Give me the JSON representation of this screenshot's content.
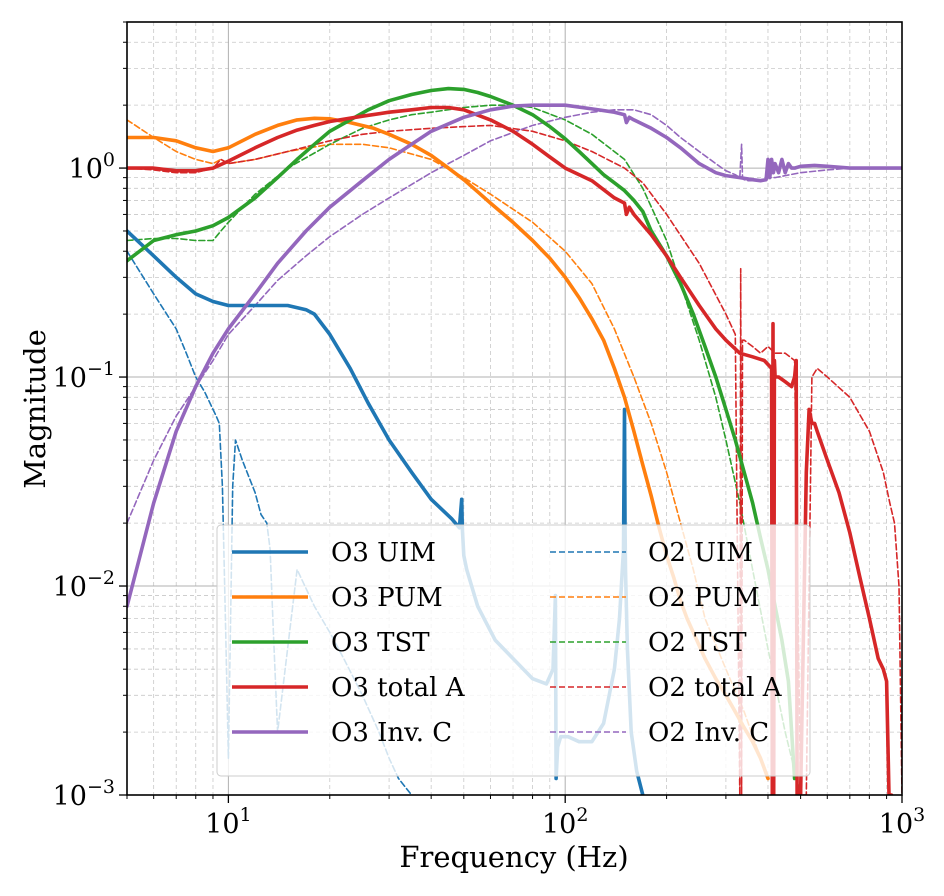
{
  "chart_data": {
    "type": "line",
    "title": "",
    "xlabel": "Frequency (Hz)",
    "ylabel": "Magnitude",
    "xscale": "log",
    "yscale": "log",
    "xlim": [
      5,
      1000
    ],
    "ylim": [
      0.001,
      5
    ],
    "grid": true,
    "legend": "lower-center, two columns",
    "x_ticks": [
      {
        "base": "10",
        "exp": "1"
      },
      {
        "base": "10",
        "exp": "2"
      },
      {
        "base": "10",
        "exp": "3"
      }
    ],
    "y_ticks": [
      {
        "base": "10",
        "exp": "−3"
      },
      {
        "base": "10",
        "exp": "−2"
      },
      {
        "base": "10",
        "exp": "−1"
      },
      {
        "base": "10",
        "exp": "0"
      }
    ],
    "series": [
      {
        "name": "O3 UIM",
        "color": "#1f77b4",
        "style": "solid",
        "x": [
          5,
          6,
          7,
          8,
          9,
          10,
          11,
          12,
          13,
          15,
          17,
          18,
          20,
          23,
          26,
          30,
          35,
          40,
          46,
          48.5,
          49.3,
          49.5,
          50,
          51,
          55,
          62,
          70,
          80,
          88,
          92,
          93.5,
          94,
          95,
          97,
          102,
          110,
          120,
          130,
          140,
          145,
          149,
          150,
          150.5,
          151,
          153,
          157,
          163,
          170
        ],
        "y": [
          0.5,
          0.38,
          0.3,
          0.25,
          0.23,
          0.22,
          0.22,
          0.22,
          0.22,
          0.22,
          0.21,
          0.2,
          0.16,
          0.11,
          0.075,
          0.05,
          0.035,
          0.026,
          0.021,
          0.019,
          0.026,
          0.019,
          0.014,
          0.012,
          0.008,
          0.0055,
          0.0045,
          0.0036,
          0.0034,
          0.004,
          0.009,
          0.0012,
          0.0017,
          0.0019,
          0.0019,
          0.0018,
          0.0018,
          0.0022,
          0.004,
          0.007,
          0.015,
          0.07,
          0.02,
          0.012,
          0.005,
          0.002,
          0.0013,
          0.001
        ]
      },
      {
        "name": "O3 PUM",
        "color": "#ff7f0e",
        "style": "solid",
        "x": [
          5,
          6,
          7,
          8,
          9,
          10,
          12,
          14,
          16,
          18,
          20,
          23,
          27,
          30,
          35,
          40,
          45,
          50,
          55,
          60,
          70,
          80,
          90,
          100,
          110,
          120,
          130,
          140,
          150,
          160,
          170,
          180,
          190,
          200,
          210,
          220,
          230,
          240,
          260,
          280,
          300,
          320,
          340,
          360,
          380,
          400
        ],
        "y": [
          1.4,
          1.4,
          1.35,
          1.25,
          1.2,
          1.25,
          1.45,
          1.6,
          1.7,
          1.73,
          1.72,
          1.65,
          1.55,
          1.45,
          1.3,
          1.15,
          1.0,
          0.88,
          0.77,
          0.68,
          0.55,
          0.45,
          0.37,
          0.3,
          0.24,
          0.19,
          0.15,
          0.11,
          0.08,
          0.055,
          0.038,
          0.027,
          0.019,
          0.014,
          0.011,
          0.0085,
          0.007,
          0.006,
          0.0045,
          0.0036,
          0.003,
          0.0025,
          0.0021,
          0.0018,
          0.0015,
          0.0012
        ]
      },
      {
        "name": "O3 TST",
        "color": "#2ca02c",
        "style": "solid",
        "x": [
          5,
          6,
          7,
          8,
          9,
          10,
          12,
          14,
          16,
          18,
          20,
          23,
          26,
          30,
          35,
          40,
          45,
          50,
          55,
          60,
          70,
          80,
          90,
          100,
          110,
          120,
          130,
          140,
          150,
          160,
          170,
          180,
          200,
          220,
          240,
          260,
          280,
          300,
          320,
          340,
          360,
          380,
          400,
          420,
          440,
          460,
          480
        ],
        "y": [
          0.36,
          0.45,
          0.48,
          0.5,
          0.53,
          0.58,
          0.72,
          0.9,
          1.1,
          1.3,
          1.5,
          1.7,
          1.9,
          2.1,
          2.25,
          2.35,
          2.4,
          2.38,
          2.3,
          2.2,
          2.0,
          1.8,
          1.58,
          1.38,
          1.2,
          1.05,
          0.93,
          0.85,
          0.78,
          0.7,
          0.62,
          0.5,
          0.38,
          0.28,
          0.2,
          0.14,
          0.1,
          0.07,
          0.05,
          0.035,
          0.025,
          0.017,
          0.012,
          0.008,
          0.0055,
          0.0035,
          0.0012
        ]
      },
      {
        "name": "O3 total A",
        "color": "#d62728",
        "style": "solid",
        "x": [
          5,
          6,
          7,
          8,
          9,
          10,
          12,
          14,
          16,
          18,
          20,
          25,
          30,
          35,
          40,
          45,
          50,
          60,
          70,
          80,
          90,
          100,
          120,
          140,
          150,
          152,
          155,
          160,
          180,
          200,
          220,
          250,
          280,
          300,
          330,
          360,
          390,
          410,
          412,
          414,
          416,
          418,
          420,
          430,
          450,
          470,
          480,
          485,
          488,
          490,
          500,
          520,
          530,
          540,
          550,
          560,
          600,
          650,
          700,
          750,
          800,
          850,
          880,
          900,
          915,
          930
        ],
        "y": [
          1.0,
          1.0,
          0.97,
          0.97,
          1.0,
          1.08,
          1.25,
          1.4,
          1.52,
          1.6,
          1.67,
          1.77,
          1.85,
          1.9,
          1.95,
          1.95,
          1.9,
          1.7,
          1.5,
          1.3,
          1.13,
          1.0,
          0.87,
          0.72,
          0.68,
          0.6,
          0.65,
          0.6,
          0.48,
          0.38,
          0.3,
          0.22,
          0.17,
          0.15,
          0.13,
          0.125,
          0.12,
          0.11,
          0.001,
          0.18,
          0.001,
          0.12,
          0.1,
          0.1,
          0.095,
          0.09,
          0.1,
          0.12,
          0.001,
          0.001,
          0.001,
          0.035,
          0.07,
          0.06,
          0.06,
          0.055,
          0.04,
          0.028,
          0.018,
          0.011,
          0.007,
          0.0045,
          0.004,
          0.0035,
          0.001,
          0.001
        ]
      },
      {
        "name": "O3 Inv. C",
        "color": "#9467bd",
        "style": "solid",
        "x": [
          5,
          6,
          7,
          8,
          9,
          10,
          12,
          14,
          17,
          20,
          25,
          30,
          35,
          40,
          50,
          60,
          70,
          80,
          90,
          100,
          120,
          140,
          150,
          152,
          155,
          160,
          180,
          200,
          220,
          250,
          280,
          300,
          330,
          360,
          380,
          395,
          400,
          405,
          410,
          415,
          420,
          430,
          440,
          450,
          460,
          470,
          480,
          500,
          550,
          600,
          700,
          800,
          900,
          1000
        ],
        "y": [
          0.008,
          0.025,
          0.055,
          0.09,
          0.13,
          0.17,
          0.25,
          0.35,
          0.5,
          0.65,
          0.87,
          1.1,
          1.3,
          1.5,
          1.75,
          1.9,
          1.98,
          2.0,
          2.0,
          2.0,
          1.92,
          1.85,
          1.8,
          1.65,
          1.75,
          1.7,
          1.55,
          1.4,
          1.25,
          1.05,
          0.95,
          0.92,
          0.9,
          0.88,
          0.87,
          0.88,
          1.1,
          0.9,
          1.1,
          0.95,
          1.05,
          0.95,
          1.1,
          0.95,
          1.05,
          1.0,
          1.0,
          1.02,
          1.03,
          1.02,
          1.0,
          1.0,
          1.0,
          1.0
        ]
      },
      {
        "name": "O2 UIM",
        "color": "#1f77b4",
        "style": "dashed",
        "x": [
          5,
          6,
          7,
          7.5,
          8,
          8.5,
          9,
          9.2,
          9.4,
          9.6,
          9.8,
          10,
          10.3,
          10.5,
          11,
          12,
          12.5,
          13,
          13.3,
          13.6,
          14,
          16,
          18,
          20,
          22,
          25,
          28,
          30,
          32,
          35
        ],
        "y": [
          0.4,
          0.25,
          0.17,
          0.13,
          0.1,
          0.085,
          0.07,
          0.065,
          0.06,
          0.03,
          0.007,
          0.0015,
          0.03,
          0.05,
          0.04,
          0.028,
          0.022,
          0.02,
          0.015,
          0.006,
          0.002,
          0.012,
          0.008,
          0.006,
          0.0045,
          0.003,
          0.002,
          0.0015,
          0.0012,
          0.001
        ]
      },
      {
        "name": "O2 PUM",
        "color": "#ff7f0e",
        "style": "dashed",
        "x": [
          5,
          6,
          7,
          8,
          9,
          9.5,
          10,
          12,
          15,
          20,
          25,
          30,
          40,
          50,
          60,
          80,
          100,
          120,
          140,
          160,
          180,
          200,
          220,
          240,
          260,
          300,
          340,
          380,
          400
        ],
        "y": [
          1.7,
          1.4,
          1.2,
          1.1,
          1.05,
          1.1,
          1.05,
          1.1,
          1.2,
          1.3,
          1.3,
          1.25,
          1.1,
          0.9,
          0.75,
          0.55,
          0.4,
          0.28,
          0.17,
          0.1,
          0.06,
          0.035,
          0.02,
          0.012,
          0.007,
          0.004,
          0.0025,
          0.0015,
          0.0012
        ]
      },
      {
        "name": "O2 TST",
        "color": "#2ca02c",
        "style": "dashed",
        "x": [
          5,
          6,
          7,
          8,
          9,
          9.5,
          10,
          12,
          15,
          20,
          25,
          30,
          35,
          40,
          50,
          60,
          70,
          80,
          100,
          120,
          150,
          170,
          200,
          220,
          250,
          280,
          300,
          330,
          360,
          400,
          450,
          500
        ],
        "y": [
          0.45,
          0.46,
          0.46,
          0.45,
          0.45,
          0.5,
          0.55,
          0.75,
          1.0,
          1.3,
          1.55,
          1.7,
          1.8,
          1.85,
          1.95,
          2.0,
          2.0,
          1.95,
          1.7,
          1.45,
          1.1,
          0.8,
          0.45,
          0.28,
          0.15,
          0.08,
          0.05,
          0.025,
          0.012,
          0.005,
          0.002,
          0.001
        ]
      },
      {
        "name": "O2 total A",
        "color": "#d62728",
        "style": "dashed",
        "x": [
          5,
          6,
          7,
          8,
          9,
          9.5,
          10,
          12,
          15,
          20,
          25,
          30,
          40,
          50,
          60,
          80,
          100,
          120,
          150,
          170,
          200,
          250,
          300,
          320,
          330,
          332,
          334,
          336,
          340,
          360,
          380,
          400,
          420,
          450,
          480,
          500,
          520,
          540,
          560,
          600,
          700,
          800,
          880,
          920,
          950,
          980,
          1000
        ],
        "y": [
          1.0,
          0.98,
          0.95,
          0.95,
          1.0,
          1.1,
          1.05,
          1.1,
          1.2,
          1.35,
          1.45,
          1.5,
          1.55,
          1.58,
          1.6,
          1.5,
          1.35,
          1.2,
          1.0,
          0.85,
          0.6,
          0.35,
          0.2,
          0.16,
          0.001,
          0.33,
          0.001,
          0.15,
          0.15,
          0.14,
          0.13,
          0.14,
          0.13,
          0.13,
          0.12,
          0.001,
          0.001,
          0.1,
          0.11,
          0.1,
          0.08,
          0.055,
          0.035,
          0.025,
          0.02,
          0.01,
          0.001
        ]
      },
      {
        "name": "O2 Inv. C",
        "color": "#9467bd",
        "style": "dashed",
        "x": [
          5,
          6,
          7,
          8,
          9,
          10,
          12,
          14,
          17,
          20,
          25,
          30,
          40,
          50,
          60,
          80,
          100,
          120,
          140,
          160,
          180,
          200,
          220,
          250,
          280,
          300,
          320,
          330,
          334,
          336,
          340,
          350,
          380,
          400,
          420,
          450,
          500,
          600,
          700,
          800,
          900,
          1000
        ],
        "y": [
          0.02,
          0.04,
          0.065,
          0.09,
          0.12,
          0.16,
          0.22,
          0.29,
          0.38,
          0.47,
          0.6,
          0.72,
          0.95,
          1.15,
          1.35,
          1.6,
          1.75,
          1.85,
          1.9,
          1.9,
          1.8,
          1.6,
          1.4,
          1.2,
          1.05,
          0.97,
          0.93,
          0.9,
          1.3,
          0.9,
          0.88,
          0.87,
          0.87,
          0.9,
          0.9,
          0.92,
          0.95,
          0.98,
          1.0,
          1.0,
          1.0,
          1.0
        ]
      }
    ]
  }
}
